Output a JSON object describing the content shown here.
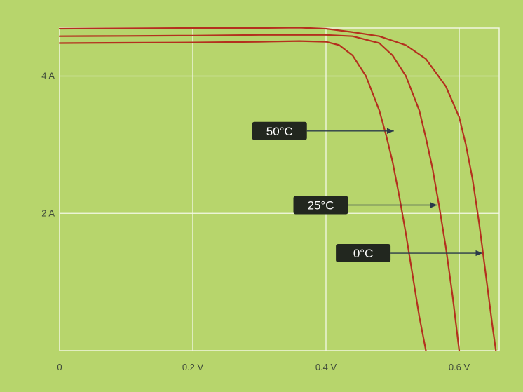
{
  "chart_data": {
    "type": "line",
    "title": "",
    "xlabel": "",
    "ylabel": "",
    "xlim": [
      0,
      0.66
    ],
    "ylim": [
      0,
      4.7
    ],
    "grid": true,
    "x_ticks": [
      {
        "value": 0,
        "label": "0"
      },
      {
        "value": 0.2,
        "label": "0.2 V"
      },
      {
        "value": 0.4,
        "label": "0.4 V"
      },
      {
        "value": 0.6,
        "label": "0.6 V"
      }
    ],
    "y_ticks": [
      {
        "value": 2,
        "label": "2 A"
      },
      {
        "value": 4,
        "label": "4 A"
      }
    ],
    "series": [
      {
        "name": "50°C",
        "points": [
          [
            0,
            4.48
          ],
          [
            0.1,
            4.485
          ],
          [
            0.2,
            4.49
          ],
          [
            0.3,
            4.5
          ],
          [
            0.36,
            4.51
          ],
          [
            0.4,
            4.5
          ],
          [
            0.42,
            4.45
          ],
          [
            0.44,
            4.3
          ],
          [
            0.46,
            4.0
          ],
          [
            0.48,
            3.5
          ],
          [
            0.49,
            3.15
          ],
          [
            0.5,
            2.75
          ],
          [
            0.51,
            2.25
          ],
          [
            0.52,
            1.7
          ],
          [
            0.53,
            1.1
          ],
          [
            0.54,
            0.5
          ],
          [
            0.55,
            0.0
          ]
        ],
        "label_value": {
          "x": 0.505,
          "y": 3.2
        }
      },
      {
        "name": "25°C",
        "points": [
          [
            0,
            4.58
          ],
          [
            0.1,
            4.585
          ],
          [
            0.2,
            4.59
          ],
          [
            0.3,
            4.6
          ],
          [
            0.4,
            4.6
          ],
          [
            0.44,
            4.58
          ],
          [
            0.48,
            4.48
          ],
          [
            0.5,
            4.3
          ],
          [
            0.52,
            4.0
          ],
          [
            0.54,
            3.5
          ],
          [
            0.55,
            3.1
          ],
          [
            0.56,
            2.65
          ],
          [
            0.57,
            2.1
          ],
          [
            0.58,
            1.5
          ],
          [
            0.59,
            0.8
          ],
          [
            0.6,
            0.0
          ]
        ],
        "label_value": {
          "x": 0.57,
          "y": 2.12
        }
      },
      {
        "name": "0°C",
        "points": [
          [
            0,
            4.69
          ],
          [
            0.1,
            4.695
          ],
          [
            0.2,
            4.7
          ],
          [
            0.3,
            4.7
          ],
          [
            0.36,
            4.705
          ],
          [
            0.4,
            4.69
          ],
          [
            0.44,
            4.64
          ],
          [
            0.48,
            4.58
          ],
          [
            0.52,
            4.45
          ],
          [
            0.55,
            4.25
          ],
          [
            0.58,
            3.85
          ],
          [
            0.6,
            3.4
          ],
          [
            0.61,
            3.0
          ],
          [
            0.62,
            2.5
          ],
          [
            0.63,
            1.85
          ],
          [
            0.64,
            1.1
          ],
          [
            0.65,
            0.35
          ],
          [
            0.655,
            0.0
          ]
        ],
        "label_value": {
          "x": 0.638,
          "y": 1.42
        }
      }
    ]
  },
  "colors": {
    "background": "#b7d56c",
    "grid": "#f4f8e6",
    "curve": "#b4301e",
    "callout_bg": "#22271f",
    "callout_text": "#ffffff",
    "arrow": "#2a3a4a"
  }
}
